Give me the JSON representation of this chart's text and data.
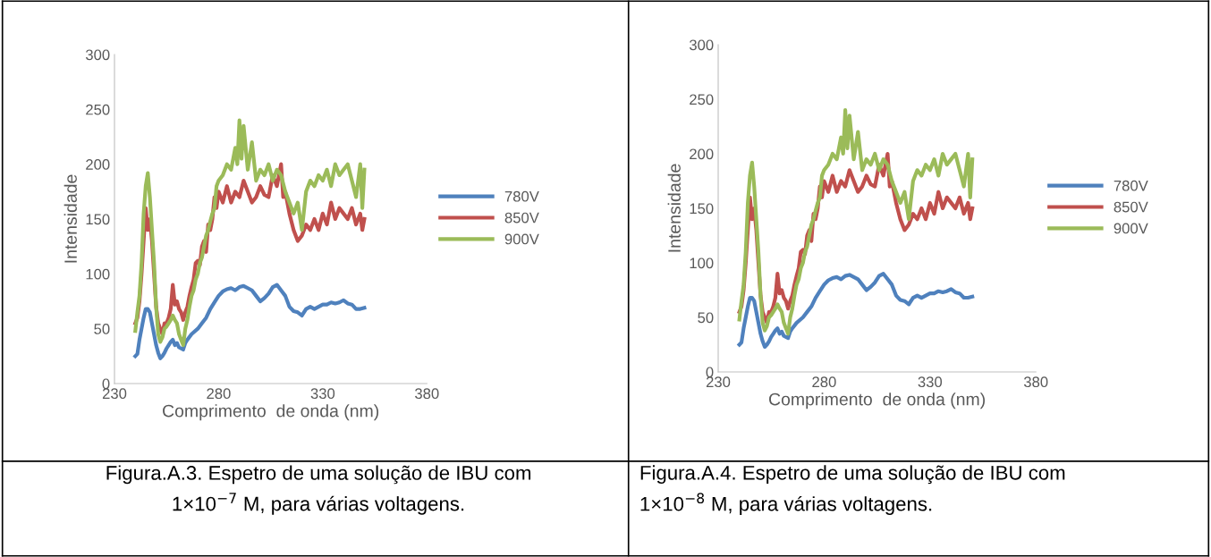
{
  "chart_data": [
    {
      "type": "line",
      "xlabel": "Comprimento  de onda (nm)",
      "ylabel": "Intensidade",
      "xlim": [
        230,
        380
      ],
      "xticks": [
        230,
        280,
        330,
        380
      ],
      "ylim": [
        0,
        300
      ],
      "yticks": [
        0,
        50,
        100,
        150,
        200,
        250,
        300
      ],
      "grid": false,
      "legend": "right",
      "marker": "none",
      "line_style": "solid",
      "annotations": [
        "Figura.A.3. Espetro de uma solução de IBU com\n1×10$^{−7}$ M, para várias voltagens."
      ],
      "series": [
        {
          "name": "780V",
          "color": "#4f81bd",
          "x": [
            240,
            241,
            242,
            243,
            244,
            245,
            246,
            247,
            248,
            249,
            250,
            251,
            252,
            253,
            254,
            255,
            256,
            257,
            258,
            259,
            260,
            261,
            262,
            263,
            264,
            265,
            267,
            270,
            272,
            274,
            276,
            278,
            280,
            282,
            284,
            286,
            288,
            290,
            292,
            294,
            296,
            298,
            300,
            302,
            304,
            306,
            308,
            310,
            312,
            314,
            316,
            318,
            320,
            322,
            324,
            326,
            328,
            330,
            332,
            334,
            336,
            338,
            340,
            342,
            344,
            346,
            348,
            350
          ],
          "values": [
            25,
            27,
            40,
            50,
            60,
            68,
            68,
            65,
            55,
            45,
            35,
            28,
            23,
            25,
            28,
            32,
            35,
            38,
            40,
            35,
            37,
            33,
            32,
            31,
            37,
            40,
            45,
            50,
            55,
            60,
            68,
            74,
            80,
            84,
            86,
            87,
            85,
            88,
            89,
            87,
            85,
            80,
            75,
            78,
            82,
            88,
            90,
            85,
            80,
            70,
            66,
            65,
            62,
            68,
            70,
            68,
            70,
            72,
            72,
            74,
            73,
            74,
            76,
            73,
            72,
            68,
            68,
            69
          ]
        },
        {
          "name": "850V",
          "color": "#c0504d",
          "x": [
            240,
            241,
            242,
            243,
            244,
            245,
            246,
            247,
            248,
            249,
            250,
            251,
            252,
            253,
            254,
            255,
            256,
            257,
            258,
            259,
            260,
            261,
            262,
            263,
            264,
            265,
            266,
            267,
            268,
            269,
            270,
            271,
            272,
            273,
            274,
            275,
            276,
            277,
            278,
            279,
            280,
            282,
            284,
            286,
            288,
            290,
            292,
            294,
            296,
            298,
            300,
            302,
            304,
            306,
            308,
            310,
            311,
            312,
            314,
            316,
            318,
            320,
            322,
            324,
            326,
            328,
            330,
            332,
            334,
            336,
            338,
            340,
            342,
            344,
            346,
            348,
            349,
            350
          ],
          "values": [
            55,
            60,
            75,
            100,
            130,
            160,
            140,
            150,
            130,
            100,
            70,
            55,
            50,
            45,
            55,
            55,
            60,
            68,
            90,
            72,
            75,
            68,
            65,
            58,
            65,
            70,
            80,
            88,
            95,
            110,
            112,
            108,
            125,
            130,
            120,
            145,
            140,
            150,
            170,
            160,
            175,
            165,
            180,
            165,
            175,
            170,
            185,
            175,
            165,
            170,
            180,
            172,
            170,
            190,
            180,
            200,
            170,
            175,
            155,
            140,
            130,
            135,
            145,
            140,
            150,
            140,
            155,
            145,
            165,
            150,
            160,
            155,
            150,
            160,
            145,
            155,
            140,
            150
          ]
        },
        {
          "name": "900V",
          "color": "#9bbb59",
          "x": [
            240,
            241,
            242,
            243,
            244,
            245,
            246,
            247,
            248,
            249,
            250,
            251,
            252,
            253,
            254,
            255,
            256,
            257,
            258,
            259,
            260,
            261,
            262,
            263,
            264,
            265,
            266,
            267,
            268,
            269,
            270,
            271,
            272,
            273,
            274,
            275,
            276,
            277,
            278,
            279,
            280,
            282,
            284,
            286,
            288,
            289,
            290,
            291,
            292,
            294,
            296,
            298,
            300,
            302,
            304,
            306,
            308,
            310,
            312,
            314,
            316,
            318,
            320,
            322,
            324,
            326,
            328,
            330,
            332,
            334,
            336,
            338,
            340,
            342,
            344,
            346,
            348,
            349,
            350
          ],
          "values": [
            48,
            65,
            80,
            110,
            155,
            180,
            192,
            170,
            140,
            110,
            70,
            45,
            38,
            42,
            50,
            52,
            55,
            58,
            62,
            58,
            55,
            45,
            40,
            35,
            50,
            58,
            70,
            80,
            85,
            95,
            100,
            110,
            115,
            125,
            135,
            140,
            148,
            155,
            160,
            180,
            185,
            190,
            200,
            195,
            215,
            200,
            240,
            205,
            235,
            195,
            220,
            185,
            195,
            190,
            200,
            185,
            195,
            190,
            175,
            165,
            155,
            165,
            140,
            175,
            185,
            180,
            190,
            185,
            195,
            180,
            200,
            190,
            195,
            200,
            185,
            170,
            200,
            160,
            195
          ]
        }
      ]
    },
    {
      "type": "line",
      "xlabel": "Comprimento  de onda (nm)",
      "ylabel": "Intensidade",
      "xlim": [
        230,
        380
      ],
      "xticks": [
        230,
        280,
        330,
        380
      ],
      "ylim": [
        0,
        300
      ],
      "yticks": [
        0,
        50,
        100,
        150,
        200,
        250,
        300
      ],
      "grid": false,
      "legend": "right",
      "marker": "none",
      "line_style": "solid",
      "annotations": [
        "Figura.A.4. Espetro de uma solução de IBU com\n1×10$^{−8}$ M, para várias voltagens."
      ],
      "series": [
        {
          "name": "780V",
          "color": "#4f81bd",
          "x": [
            240,
            241,
            242,
            243,
            244,
            245,
            246,
            247,
            248,
            249,
            250,
            251,
            252,
            253,
            254,
            255,
            256,
            257,
            258,
            259,
            260,
            261,
            262,
            263,
            264,
            265,
            267,
            270,
            272,
            274,
            276,
            278,
            280,
            282,
            284,
            286,
            288,
            290,
            292,
            294,
            296,
            298,
            300,
            302,
            304,
            306,
            308,
            310,
            312,
            314,
            316,
            318,
            320,
            322,
            324,
            326,
            328,
            330,
            332,
            334,
            336,
            338,
            340,
            342,
            344,
            346,
            348,
            350
          ],
          "values": [
            25,
            27,
            40,
            50,
            60,
            68,
            68,
            65,
            55,
            45,
            35,
            28,
            23,
            25,
            28,
            32,
            35,
            38,
            40,
            35,
            37,
            33,
            32,
            31,
            37,
            40,
            45,
            50,
            55,
            60,
            68,
            74,
            80,
            84,
            86,
            87,
            85,
            88,
            89,
            87,
            85,
            80,
            75,
            78,
            82,
            88,
            90,
            85,
            80,
            70,
            66,
            65,
            62,
            68,
            70,
            68,
            70,
            72,
            72,
            74,
            73,
            74,
            76,
            73,
            72,
            68,
            68,
            69
          ]
        },
        {
          "name": "850V",
          "color": "#c0504d",
          "x": [
            240,
            241,
            242,
            243,
            244,
            245,
            246,
            247,
            248,
            249,
            250,
            251,
            252,
            253,
            254,
            255,
            256,
            257,
            258,
            259,
            260,
            261,
            262,
            263,
            264,
            265,
            266,
            267,
            268,
            269,
            270,
            271,
            272,
            273,
            274,
            275,
            276,
            277,
            278,
            279,
            280,
            282,
            284,
            286,
            288,
            290,
            292,
            294,
            296,
            298,
            300,
            302,
            304,
            306,
            308,
            310,
            311,
            312,
            314,
            316,
            318,
            320,
            322,
            324,
            326,
            328,
            330,
            332,
            334,
            336,
            338,
            340,
            342,
            344,
            346,
            348,
            349,
            350
          ],
          "values": [
            55,
            60,
            75,
            100,
            130,
            160,
            140,
            150,
            130,
            100,
            70,
            55,
            50,
            45,
            55,
            55,
            60,
            68,
            90,
            72,
            75,
            68,
            65,
            58,
            65,
            70,
            80,
            88,
            95,
            110,
            112,
            108,
            125,
            130,
            120,
            145,
            140,
            150,
            170,
            160,
            175,
            165,
            180,
            165,
            175,
            170,
            185,
            175,
            165,
            170,
            180,
            172,
            170,
            190,
            180,
            200,
            170,
            175,
            155,
            140,
            130,
            135,
            145,
            140,
            150,
            140,
            155,
            145,
            165,
            150,
            160,
            155,
            150,
            160,
            145,
            155,
            140,
            150
          ]
        },
        {
          "name": "900V",
          "color": "#9bbb59",
          "x": [
            240,
            241,
            242,
            243,
            244,
            245,
            246,
            247,
            248,
            249,
            250,
            251,
            252,
            253,
            254,
            255,
            256,
            257,
            258,
            259,
            260,
            261,
            262,
            263,
            264,
            265,
            266,
            267,
            268,
            269,
            270,
            271,
            272,
            273,
            274,
            275,
            276,
            277,
            278,
            279,
            280,
            282,
            284,
            286,
            288,
            289,
            290,
            291,
            292,
            294,
            296,
            298,
            300,
            302,
            304,
            306,
            308,
            310,
            312,
            314,
            316,
            318,
            320,
            322,
            324,
            326,
            328,
            330,
            332,
            334,
            336,
            338,
            340,
            342,
            344,
            346,
            348,
            349,
            350
          ],
          "values": [
            48,
            65,
            80,
            110,
            155,
            180,
            192,
            170,
            140,
            110,
            70,
            45,
            38,
            42,
            50,
            52,
            55,
            58,
            62,
            58,
            55,
            45,
            40,
            35,
            50,
            58,
            70,
            80,
            85,
            95,
            100,
            110,
            115,
            125,
            135,
            140,
            148,
            155,
            160,
            180,
            185,
            190,
            200,
            195,
            215,
            200,
            240,
            205,
            235,
            195,
            220,
            185,
            195,
            190,
            200,
            185,
            195,
            190,
            175,
            165,
            155,
            165,
            140,
            175,
            185,
            180,
            190,
            185,
            195,
            180,
            200,
            190,
            195,
            200,
            185,
            170,
            200,
            160,
            195
          ]
        }
      ]
    }
  ]
}
